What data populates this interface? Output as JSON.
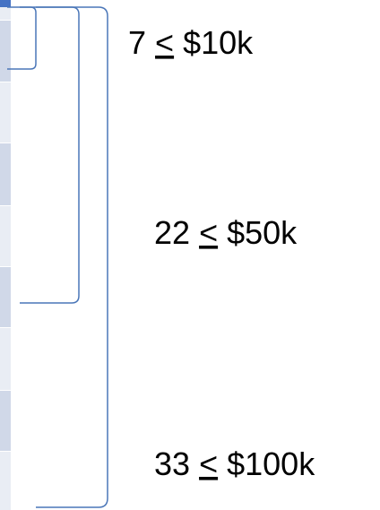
{
  "labels": [
    {
      "count": "7",
      "symbol": "<",
      "amount": "$10k"
    },
    {
      "count": "22",
      "symbol": "<",
      "amount": "$50k"
    },
    {
      "count": "33",
      "symbol": "<",
      "amount": "$100k"
    }
  ]
}
